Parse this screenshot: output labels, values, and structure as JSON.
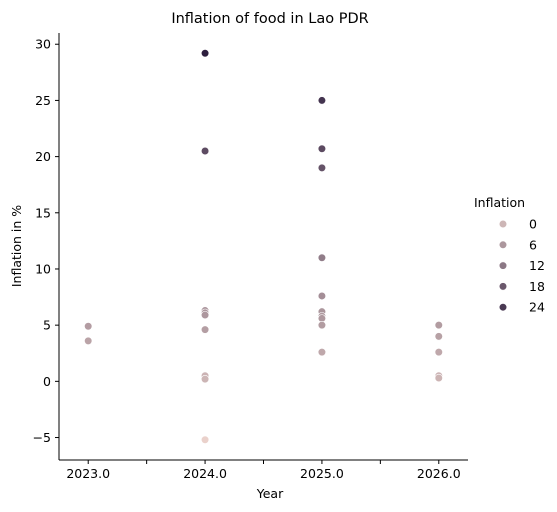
{
  "chart_data": {
    "type": "scatter",
    "title": "Inflation of food in Lao PDR",
    "xlabel": "Year",
    "ylabel": "Inflation in %",
    "xlim": [
      2022.75,
      2026.25
    ],
    "ylim": [
      -7,
      31
    ],
    "x_ticks": [
      2023.0,
      2023.5,
      2024.0,
      2024.5,
      2025.0,
      2025.5,
      2026.0
    ],
    "x_tick_labels": [
      "2023.0",
      "",
      "2024.0",
      "",
      "2025.0",
      "",
      "2026.0"
    ],
    "y_ticks": [
      -5,
      0,
      5,
      10,
      15,
      20,
      25,
      30
    ],
    "y_tick_labels": [
      "−5",
      "0",
      "5",
      "10",
      "15",
      "20",
      "25",
      "30"
    ],
    "grid": false,
    "hue": "Inflation",
    "color_range": [
      "#ead1cb",
      "#2d1e3e"
    ],
    "legend": {
      "title": "Inflation",
      "placement": "right",
      "entries": [
        {
          "label": "0",
          "value": 0
        },
        {
          "label": "6",
          "value": 6
        },
        {
          "label": "12",
          "value": 12
        },
        {
          "label": "18",
          "value": 18
        },
        {
          "label": "24",
          "value": 24
        }
      ]
    },
    "points": [
      {
        "x": 2023.0,
        "y": 4.9
      },
      {
        "x": 2023.0,
        "y": 3.6
      },
      {
        "x": 2024.0,
        "y": 29.2
      },
      {
        "x": 2024.0,
        "y": 20.5
      },
      {
        "x": 2024.0,
        "y": 6.3
      },
      {
        "x": 2024.0,
        "y": 6.1
      },
      {
        "x": 2024.0,
        "y": 5.9
      },
      {
        "x": 2024.0,
        "y": 4.6
      },
      {
        "x": 2024.0,
        "y": 0.5
      },
      {
        "x": 2024.0,
        "y": 0.2
      },
      {
        "x": 2024.0,
        "y": -5.2
      },
      {
        "x": 2025.0,
        "y": 25.0
      },
      {
        "x": 2025.0,
        "y": 20.7
      },
      {
        "x": 2025.0,
        "y": 19.0
      },
      {
        "x": 2025.0,
        "y": 11.0
      },
      {
        "x": 2025.0,
        "y": 7.6
      },
      {
        "x": 2025.0,
        "y": 6.2
      },
      {
        "x": 2025.0,
        "y": 5.8
      },
      {
        "x": 2025.0,
        "y": 5.6
      },
      {
        "x": 2025.0,
        "y": 5.0
      },
      {
        "x": 2025.0,
        "y": 2.6
      },
      {
        "x": 2026.0,
        "y": 5.0
      },
      {
        "x": 2026.0,
        "y": 4.0
      },
      {
        "x": 2026.0,
        "y": 2.6
      },
      {
        "x": 2026.0,
        "y": 0.5
      },
      {
        "x": 2026.0,
        "y": 0.3
      }
    ]
  }
}
